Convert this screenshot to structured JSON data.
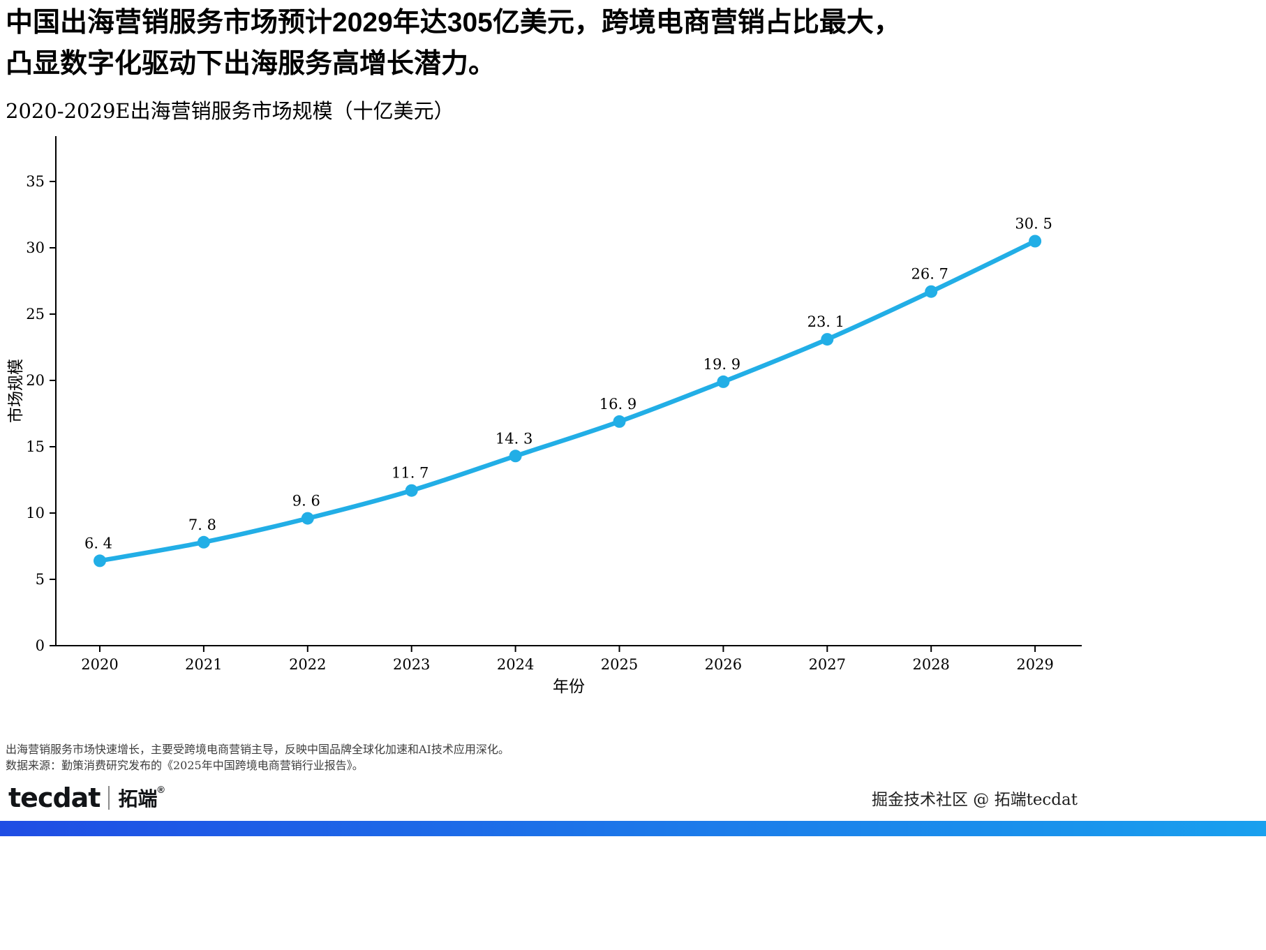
{
  "headline": {
    "line1": "中国出海营销服务市场预计2029年达305亿美元，跨境电商营销占比最大，",
    "line2": "凸显数字化驱动下出海服务高增长潜力。"
  },
  "subtitle": "2020-2029E出海营销服务市场规模（十亿美元）",
  "chart_data": {
    "type": "line",
    "title": "2020-2029E出海营销服务市场规模（十亿美元）",
    "categories": [
      "2020",
      "2021",
      "2022",
      "2023",
      "2024",
      "2025",
      "2026",
      "2027",
      "2028",
      "2029"
    ],
    "values": [
      6.4,
      7.8,
      9.6,
      11.7,
      14.3,
      16.9,
      19.9,
      23.1,
      26.7,
      30.5
    ],
    "point_labels": [
      "6. 4",
      "7. 8",
      "9. 6",
      "11. 7",
      "14. 3",
      "16. 9",
      "19. 9",
      "23. 1",
      "26. 7",
      "30. 5"
    ],
    "xlabel": "年份",
    "ylabel": "市场规模",
    "ylim": [
      0,
      38.5
    ],
    "yticks": [
      0,
      5,
      10,
      15,
      20,
      25,
      30,
      35
    ],
    "grid": false,
    "legend": "none",
    "line_color": "#22AEE6",
    "marker_color": "#22AEE6",
    "axis_color": "#000000"
  },
  "footnotes": {
    "line1": "出海营销服务市场快速增长，主要受跨境电商营销主导，反映中国品牌全球化加速和AI技术应用深化。",
    "line2": "数据来源：勤策消费研究发布的《2025年中国跨境电商营销行业报告》。"
  },
  "footer": {
    "logo_en": "tecdat",
    "logo_cn": "拓端",
    "registered_mark": "®",
    "right_text": "掘金技术社区 @ 拓端tecdat",
    "bar_gradient": [
      "#1f4de4",
      "#19a0ee"
    ]
  }
}
